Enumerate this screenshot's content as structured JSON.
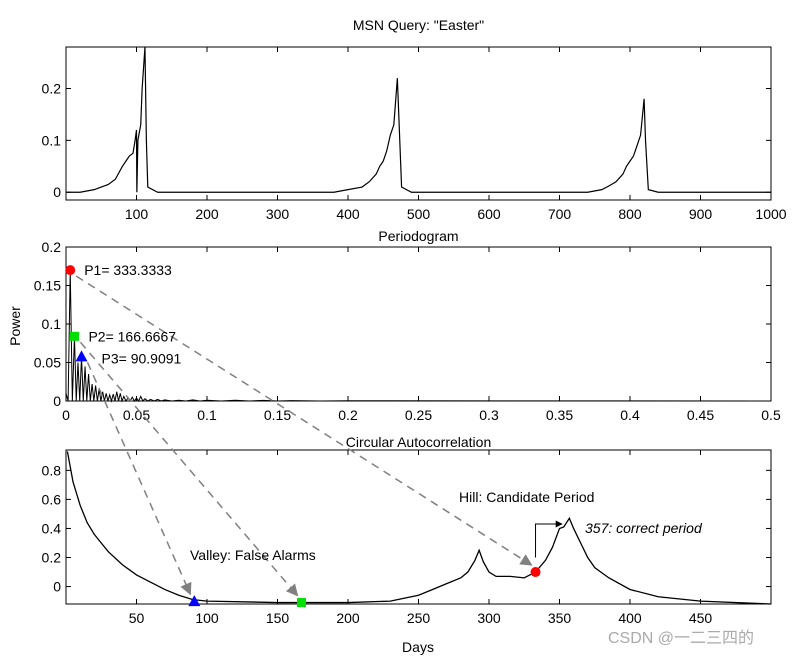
{
  "watermark": "CSDN @一二三四的",
  "chart_data": [
    {
      "type": "line",
      "title": "MSN Query: \"Easter\"",
      "xlabel": "",
      "ylabel": "",
      "xlim": [
        0,
        1000
      ],
      "ylim": [
        -0.015,
        0.28
      ],
      "xticks": [
        "100",
        "200",
        "300",
        "400",
        "500",
        "600",
        "700",
        "800",
        "900",
        "1000"
      ],
      "yticks": [
        "0",
        "0.1",
        "0.2"
      ],
      "x": [
        1,
        20,
        40,
        60,
        70,
        80,
        85,
        90,
        95,
        98,
        100,
        100.5,
        102,
        106,
        108,
        110,
        112,
        114,
        116,
        130,
        200,
        380,
        400,
        420,
        430,
        440,
        445,
        450,
        455,
        460,
        465,
        470,
        472,
        476,
        490,
        600,
        740,
        760,
        770,
        780,
        790,
        795,
        800,
        805,
        810,
        815,
        820,
        822,
        826,
        840,
        1000
      ],
      "y": [
        0,
        0,
        0.005,
        0.015,
        0.025,
        0.05,
        0.06,
        0.07,
        0.075,
        0.1,
        0.12,
        0,
        0.1,
        0.13,
        0.2,
        0.24,
        0.28,
        0.1,
        0.01,
        0,
        0,
        0,
        0.005,
        0.01,
        0.02,
        0.035,
        0.05,
        0.06,
        0.08,
        0.11,
        0.13,
        0.22,
        0.15,
        0.01,
        0,
        0,
        0,
        0.005,
        0.012,
        0.02,
        0.035,
        0.05,
        0.06,
        0.07,
        0.09,
        0.11,
        0.18,
        0.1,
        0.005,
        0,
        0
      ]
    },
    {
      "type": "line",
      "title": "Periodogram",
      "xlabel": "",
      "ylabel": "Power",
      "xlim": [
        0,
        0.5
      ],
      "ylim": [
        0,
        0.2
      ],
      "xticks": [
        "0",
        "0.05",
        "0.1",
        "0.15",
        "0.2",
        "0.25",
        "0.3",
        "0.35",
        "0.4",
        "0.45",
        "0.5"
      ],
      "yticks": [
        "0",
        "0.05",
        "0.1",
        "0.15",
        "0.2"
      ],
      "peaks": [
        [
          0.003,
          0.17
        ],
        [
          0.006,
          0.084
        ],
        [
          0.0085,
          0.05
        ],
        [
          0.011,
          0.058
        ],
        [
          0.0135,
          0.045
        ],
        [
          0.016,
          0.035
        ],
        [
          0.0185,
          0.022
        ],
        [
          0.021,
          0.02
        ],
        [
          0.0235,
          0.015
        ],
        [
          0.026,
          0.012
        ],
        [
          0.0285,
          0.01
        ],
        [
          0.031,
          0.008
        ],
        [
          0.0335,
          0.009
        ],
        [
          0.036,
          0.012
        ],
        [
          0.0385,
          0.01
        ],
        [
          0.041,
          0.006
        ],
        [
          0.044,
          0.004
        ],
        [
          0.047,
          0.005
        ],
        [
          0.05,
          0.004
        ],
        [
          0.053,
          0.006
        ],
        [
          0.056,
          0.003
        ],
        [
          0.06,
          0.002
        ],
        [
          0.065,
          0.002
        ],
        [
          0.07,
          0.0015
        ],
        [
          0.08,
          0.001
        ],
        [
          0.09,
          0.0015
        ],
        [
          0.1,
          0.001
        ],
        [
          0.12,
          0.001
        ],
        [
          0.14,
          0.0008
        ],
        [
          0.16,
          0.0005
        ],
        [
          0.2,
          0.0003
        ]
      ],
      "markers": [
        {
          "label": "P1= 333.3333",
          "f": 0.003,
          "p": 0.17,
          "shape": "circle",
          "color": "#ff0000"
        },
        {
          "label": "P2= 166.6667",
          "f": 0.006,
          "p": 0.084,
          "shape": "square",
          "color": "#00e000"
        },
        {
          "label": "P3= 90.9091",
          "f": 0.011,
          "p": 0.058,
          "shape": "triangle",
          "color": "#0000ff"
        }
      ]
    },
    {
      "type": "line",
      "title": "Circular Autocorrelation",
      "xlabel": "Days",
      "ylabel": "",
      "xlim": [
        0,
        500
      ],
      "ylim": [
        -0.12,
        0.94
      ],
      "xticks": [
        "50",
        "100",
        "150",
        "200",
        "250",
        "300",
        "350",
        "400",
        "450"
      ],
      "yticks": [
        "0",
        "0.2",
        "0.4",
        "0.6",
        "0.8"
      ],
      "x": [
        1,
        5,
        10,
        15,
        20,
        25,
        30,
        40,
        50,
        60,
        70,
        80,
        90,
        100,
        150,
        200,
        230,
        250,
        260,
        270,
        280,
        285,
        290,
        293,
        296,
        300,
        305,
        315,
        325,
        333,
        340,
        345,
        350,
        353,
        357,
        360,
        365,
        370,
        375,
        385,
        400,
        420,
        450,
        500
      ],
      "y": [
        0.93,
        0.72,
        0.56,
        0.44,
        0.36,
        0.3,
        0.24,
        0.15,
        0.08,
        0.03,
        -0.02,
        -0.06,
        -0.09,
        -0.1,
        -0.11,
        -0.11,
        -0.1,
        -0.06,
        -0.02,
        0.02,
        0.06,
        0.1,
        0.18,
        0.25,
        0.17,
        0.1,
        0.07,
        0.07,
        0.06,
        0.1,
        0.18,
        0.27,
        0.4,
        0.41,
        0.47,
        0.4,
        0.3,
        0.2,
        0.13,
        0.06,
        -0.02,
        -0.07,
        -0.1,
        -0.12
      ],
      "markers": [
        {
          "day": 91,
          "v": -0.1,
          "shape": "triangle",
          "color": "#0000ff"
        },
        {
          "day": 167,
          "v": -0.11,
          "shape": "square",
          "color": "#00e000"
        },
        {
          "day": 333,
          "v": 0.1,
          "shape": "circle",
          "color": "#ff0000"
        }
      ],
      "annotations": {
        "valley": "Valley: False Alarms",
        "hill": "Hill: Candidate Period",
        "correct": "357: correct period"
      }
    }
  ]
}
